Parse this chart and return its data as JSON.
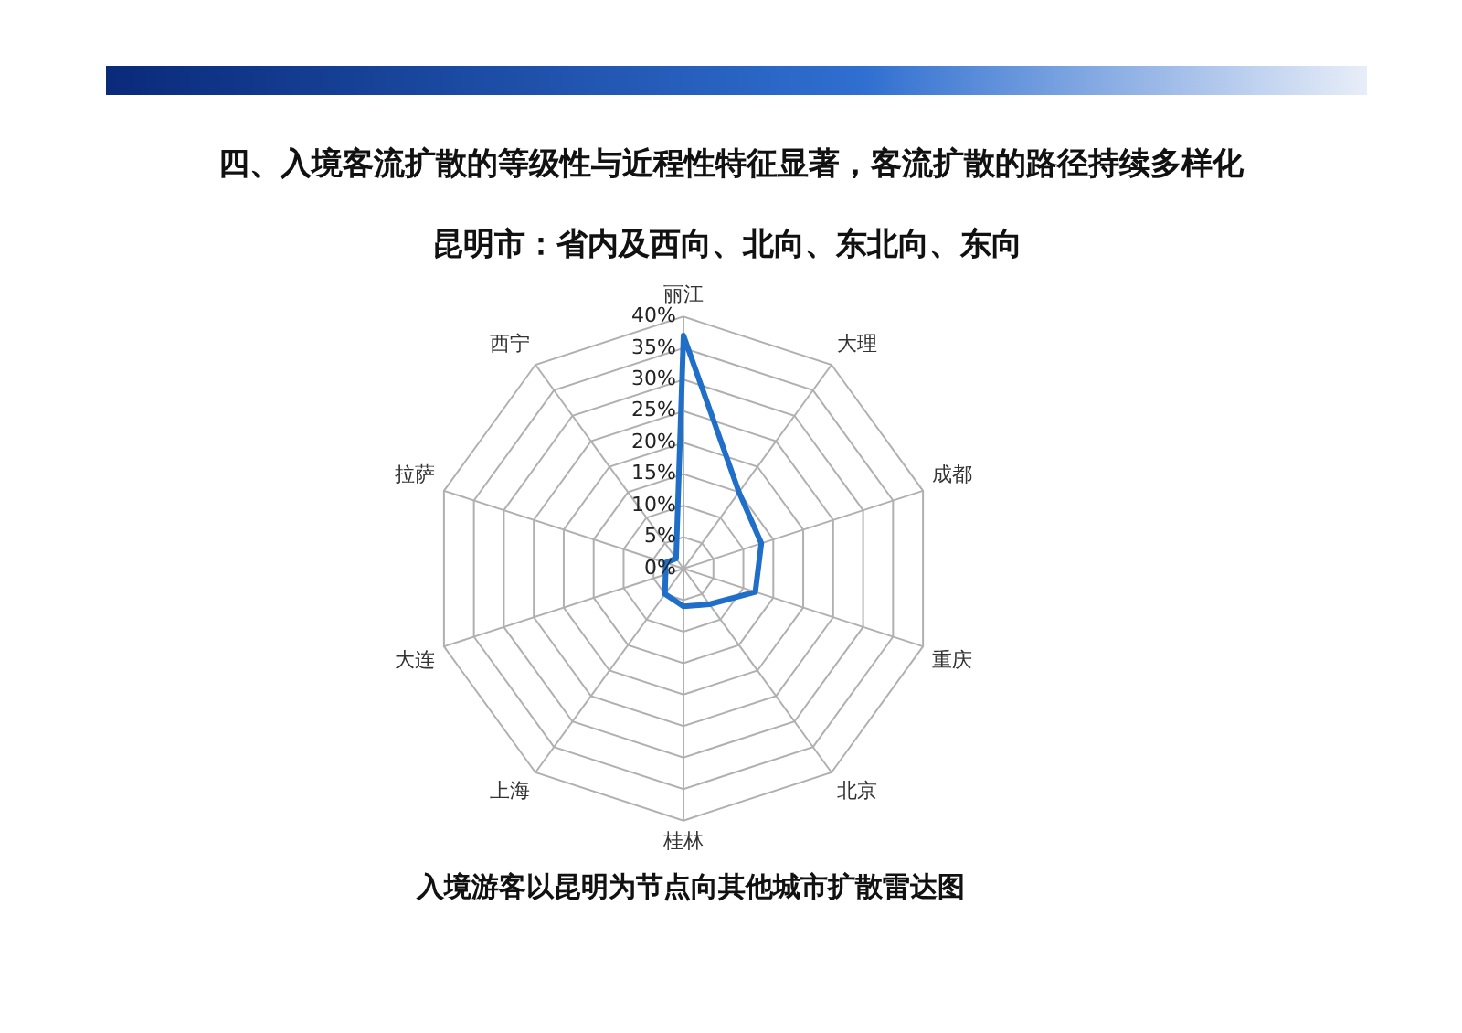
{
  "chart_data": {
    "type": "radar",
    "title": "四、入境客流扩散的等级性与近程性特征显著，客流扩散的路径持续多样化",
    "subtitle": "昆明市：省内及西向、北向、东北向、东向",
    "annotations": [
      "入境游客以昆明为节点向其他城市扩散雷达图"
    ],
    "categories": [
      "丽江",
      "大理",
      "成都",
      "重庆",
      "北京",
      "桂林",
      "上海",
      "大连",
      "拉萨",
      "西宁"
    ],
    "series": [
      {
        "color": "#1f6fc8",
        "values": [
          37,
          15,
          13,
          12,
          7,
          6,
          5,
          3,
          3,
          2
        ]
      }
    ],
    "ylim": [
      0,
      40
    ],
    "yticks": [
      {
        "value": 0,
        "label": "0%"
      },
      {
        "value": 5,
        "label": "5%"
      },
      {
        "value": 10,
        "label": "10%"
      },
      {
        "value": 15,
        "label": "15%"
      },
      {
        "value": 20,
        "label": "20%"
      },
      {
        "value": 25,
        "label": "25%"
      },
      {
        "value": 30,
        "label": "30%"
      },
      {
        "value": 35,
        "label": "35%"
      },
      {
        "value": 40,
        "label": "40%"
      }
    ],
    "grid": true,
    "legend": false,
    "marker": "none"
  }
}
